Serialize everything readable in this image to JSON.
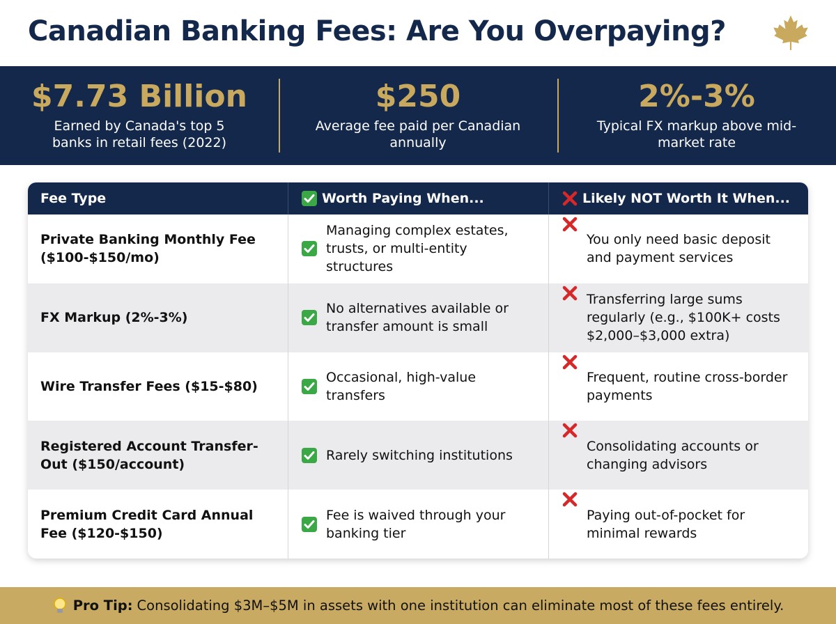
{
  "header": {
    "title": "Canadian Banking Fees: Are You Overpaying?"
  },
  "stats": [
    {
      "value": "$7.73 Billion",
      "label": "Earned by Canada's top 5 banks in retail fees (2022)"
    },
    {
      "value": "$250",
      "label": "Average fee paid per Canadian annually"
    },
    {
      "value": "2%-3%",
      "label": "Typical FX markup above mid-market rate"
    }
  ],
  "table": {
    "headers": [
      "Fee Type",
      "Worth Paying When...",
      "Likely NOT Worth It When..."
    ],
    "rows": [
      [
        "Private Banking Monthly Fee ($100-$150/mo)",
        "Managing complex estates, trusts, or multi-entity structures",
        "You only need basic deposit and payment services"
      ],
      [
        "FX Markup (2%-3%)",
        "No alternatives available or transfer amount is small",
        "Transferring large sums regularly (e.g., $100K+ costs $2,000–$3,000 extra)"
      ],
      [
        "Wire Transfer Fees ($15-$80)",
        "Occasional, high-value transfers",
        "Frequent, routine cross-border payments"
      ],
      [
        "Registered Account Transfer-Out ($150/account)",
        "Rarely switching institutions",
        "Consolidating accounts or changing advisors"
      ],
      [
        "Premium Credit Card Annual Fee ($120-$150)",
        "Fee is waived through your banking tier",
        "Paying out-of-pocket for minimal rewards"
      ]
    ]
  },
  "footer": {
    "label": "Pro Tip:",
    "text": "Consolidating $3M–$5M in assets with one institution can eliminate most of these fees entirely."
  }
}
